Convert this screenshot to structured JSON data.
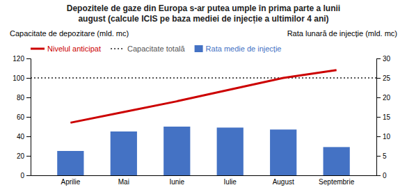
{
  "chart_data": {
    "type": "bar",
    "title": "Depozitele de gaze din Europa s-ar putea umple în prima parte a lunii",
    "subtitle": "august (calcule ICIS pe baza mediei de injecție a ultimilor 4 ani)",
    "ylabel": "Capacitate de depozitare (mld. mc)",
    "y2label": "Rata lunară de injecție (mld. mc)",
    "categories": [
      "Aprilie",
      "Mai",
      "Iunie",
      "Iulie",
      "August",
      "Septembrie"
    ],
    "series": [
      {
        "name": "Nivelul anticipat",
        "type": "line",
        "color": "#cc0000",
        "values": [
          54,
          65,
          76,
          88,
          100,
          108
        ]
      },
      {
        "name": "Capacitate totală",
        "type": "hline",
        "line_style": "dotted",
        "color": "#555555",
        "value": 100
      },
      {
        "name": "Rata medie de injecție",
        "type": "bar",
        "axis": "y2",
        "color": "#4472c4",
        "values": [
          6.25,
          11.25,
          12.5,
          12.25,
          11.75,
          7.25
        ]
      }
    ],
    "ylim": [
      0,
      120
    ],
    "yticks": [
      0,
      20,
      40,
      60,
      80,
      100,
      120
    ],
    "y2lim": [
      0,
      30
    ],
    "y2ticks": [
      0,
      5,
      10,
      15,
      20,
      25,
      30
    ],
    "grid": false,
    "legend": "upper left"
  }
}
